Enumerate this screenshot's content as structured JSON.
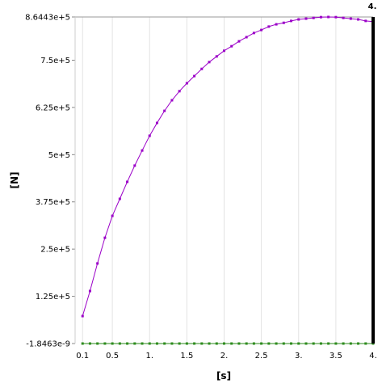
{
  "chart_data": {
    "type": "line",
    "xlabel": "[s]",
    "ylabel": "[N]",
    "x": [
      0.1,
      0.2,
      0.3,
      0.4,
      0.5,
      0.6,
      0.7,
      0.8,
      0.9,
      1.0,
      1.1,
      1.2,
      1.3,
      1.4,
      1.5,
      1.6,
      1.7,
      1.8,
      1.9,
      2.0,
      2.1,
      2.2,
      2.3,
      2.4,
      2.5,
      2.6,
      2.7,
      2.8,
      2.9,
      3.0,
      3.1,
      3.2,
      3.3,
      3.4,
      3.5,
      3.6,
      3.7,
      3.8,
      3.9,
      4.0
    ],
    "series": [
      {
        "color": "#9b00c8",
        "values": [
          72700,
          139000,
          212000,
          280000,
          338000,
          383000,
          428000,
          471000,
          511000,
          550000,
          584000,
          616000,
          644000,
          668000,
          689000,
          708000,
          727000,
          745000,
          760000,
          775000,
          787000,
          800000,
          811000,
          822000,
          830000,
          839000,
          845000,
          849000,
          854000,
          858000,
          860000,
          862000,
          864000,
          864430,
          864000,
          862000,
          860000,
          858000,
          854000,
          852000
        ]
      },
      {
        "color": "#2e8b1e",
        "values": [
          0,
          0,
          0,
          0,
          0,
          0,
          0,
          0,
          0,
          0,
          0,
          0,
          0,
          0,
          0,
          0,
          0,
          0,
          0,
          0,
          0,
          0,
          0,
          0,
          0,
          0,
          0,
          0,
          0,
          0,
          0,
          0,
          0,
          0,
          0,
          0,
          0,
          0,
          0,
          0
        ]
      }
    ],
    "xlim": [
      0,
      4
    ],
    "ylim": [
      -1.8463e-09,
      864430
    ],
    "xticks": [
      {
        "value": 0.1,
        "label": "0.1"
      },
      0.5,
      {
        "value": 1,
        "label": "1."
      },
      1.5,
      {
        "value": 2,
        "label": "2."
      },
      2.5,
      {
        "value": 3,
        "label": "3."
      },
      3.5,
      {
        "value": 4,
        "label": "4."
      }
    ],
    "yticks": [
      {
        "value": -1.8463e-09,
        "label": "-1.8463e-9"
      },
      {
        "value": 125000,
        "label": "1.25e+5"
      },
      {
        "value": 250000,
        "label": "2.5e+5"
      },
      {
        "value": 375000,
        "label": "3.75e+5"
      },
      {
        "value": 500000,
        "label": "5e+5"
      },
      {
        "value": 625000,
        "label": "6.25e+5"
      },
      {
        "value": 750000,
        "label": "7.5e+5"
      },
      {
        "value": 864430,
        "label": "8.6443e+5"
      }
    ],
    "grid": true,
    "cursor": {
      "x": 4,
      "label": "4."
    }
  }
}
